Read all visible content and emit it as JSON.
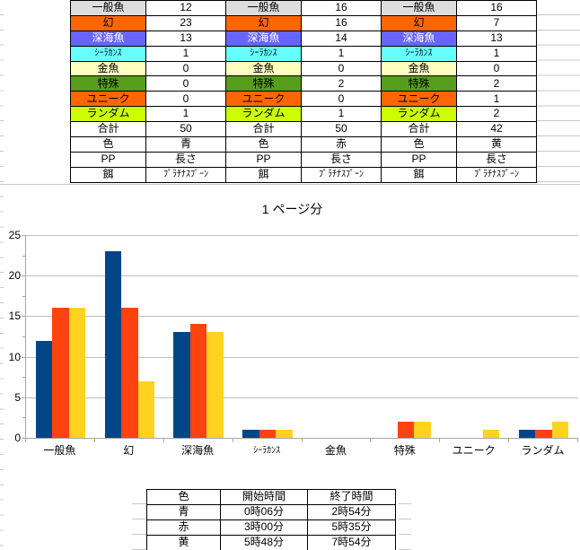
{
  "top_table": {
    "rows": [
      {
        "label": "一般魚",
        "bg": "#DDDDDD",
        "fg": "#000000",
        "values": [
          "12",
          "16",
          "16"
        ]
      },
      {
        "label": "幻",
        "bg": "#FF6600",
        "fg": "#000000",
        "values": [
          "23",
          "16",
          "7"
        ]
      },
      {
        "label": "深海魚",
        "bg": "#6666FF",
        "fg": "#FFFFFF",
        "values": [
          "13",
          "14",
          "13"
        ]
      },
      {
        "label": "ｼｰﾗｶﾝｽ",
        "bg": "#66FFFF",
        "fg": "#000000",
        "values": [
          "1",
          "1",
          "1"
        ]
      },
      {
        "label": "金魚",
        "bg": "#FFFFC0",
        "fg": "#000000",
        "values": [
          "0",
          "0",
          "0"
        ]
      },
      {
        "label": "特殊",
        "bg": "#579D1C",
        "fg": "#000000",
        "values": [
          "0",
          "2",
          "2"
        ]
      },
      {
        "label": "ユニーク",
        "bg": "#FF6600",
        "fg": "#000000",
        "values": [
          "0",
          "0",
          "1"
        ]
      },
      {
        "label": "ランダム",
        "bg": "#CCFF00",
        "fg": "#000000",
        "values": [
          "1",
          "1",
          "2"
        ]
      },
      {
        "label": "合計",
        "bg": "#FFFFFF",
        "fg": "#000000",
        "values": [
          "50",
          "50",
          "42"
        ]
      },
      {
        "label": "色",
        "bg": "#FFFFFF",
        "fg": "#000000",
        "values": [
          "青",
          "赤",
          "黄"
        ]
      },
      {
        "label": "PP",
        "bg": "#FFFFFF",
        "fg": "#000000",
        "values": [
          "長さ",
          "長さ",
          "長さ"
        ]
      },
      {
        "label": "餌",
        "bg": "#FFFFFF",
        "fg": "#000000",
        "values": [
          "ﾌﾟﾗﾁﾅｽﾌﾟｰﾝ",
          "ﾌﾟﾗﾁﾅｽﾌﾟｰﾝ",
          "ﾌﾟﾗﾁﾅｽﾌﾟｰﾝ"
        ]
      }
    ]
  },
  "chart_data": {
    "type": "bar",
    "title": "1 ページ分",
    "categories": [
      "一般魚",
      "幻",
      "深海魚",
      "ｼｰﾗｶﾝｽ",
      "金魚",
      "特殊",
      "ユニーク",
      "ランダム"
    ],
    "series": [
      {
        "name": "青",
        "color": "#004586",
        "values": [
          12,
          23,
          13,
          1,
          0,
          0,
          0,
          1
        ]
      },
      {
        "name": "赤",
        "color": "#FF420E",
        "values": [
          16,
          16,
          14,
          1,
          0,
          2,
          0,
          1
        ]
      },
      {
        "name": "黄",
        "color": "#FFD320",
        "values": [
          16,
          7,
          13,
          1,
          0,
          2,
          1,
          2
        ]
      }
    ],
    "xlabel": "",
    "ylabel": "",
    "ylim": [
      0,
      25
    ],
    "yticks": [
      0,
      5,
      10,
      15,
      20,
      25
    ],
    "minor_tick_interval": 2.5,
    "grid": true,
    "legend_position": "none"
  },
  "bottom_table": {
    "headers": [
      "色",
      "開始時間",
      "終了時間"
    ],
    "rows": [
      [
        "青",
        "0時06分",
        "2時54分"
      ],
      [
        "赤",
        "3時00分",
        "5時35分"
      ],
      [
        "黄",
        "5時48分",
        "7時54分"
      ]
    ]
  },
  "colors": {
    "sheet_gridline": "#C8C8C8",
    "chart_gridline": "#C0C0C0",
    "chart_axis": "#A6A6A6",
    "table_border": "#000000"
  }
}
